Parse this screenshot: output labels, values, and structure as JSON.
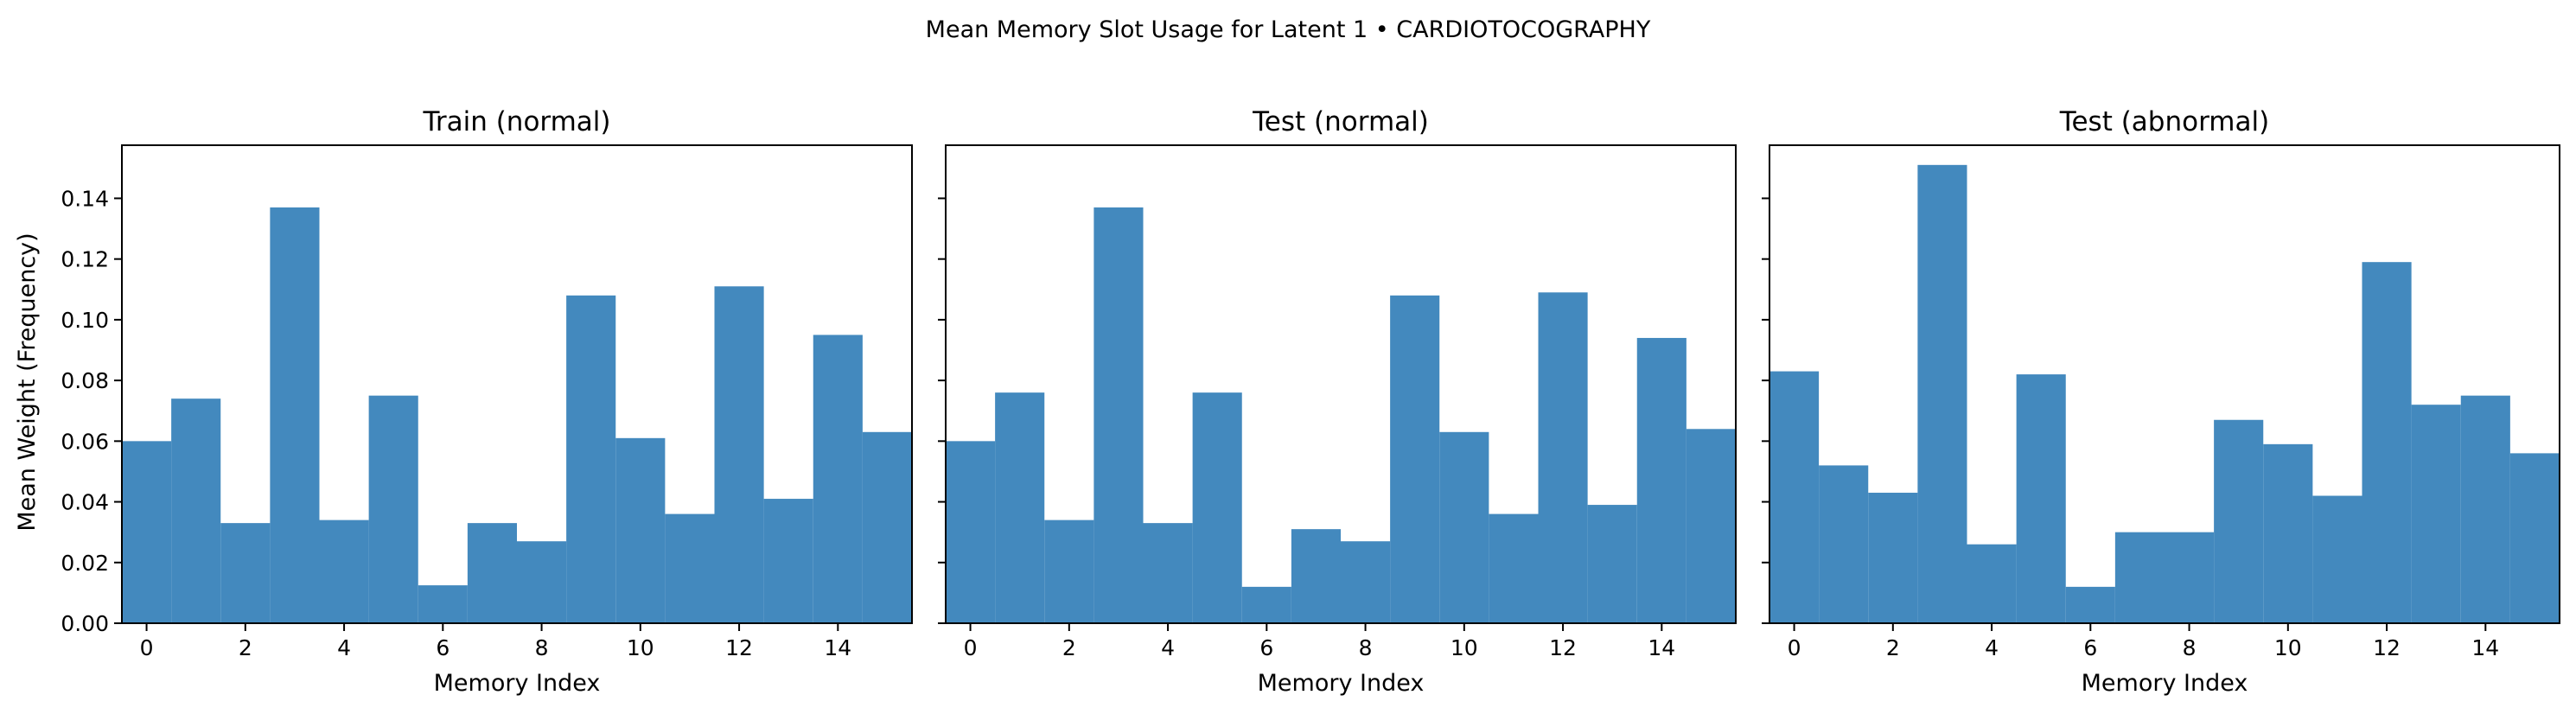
{
  "chart_data": {
    "type": "bar",
    "suptitle": "Mean Memory Slot Usage for Latent 1 • CARDIOTOCOGRAPHY",
    "bar_color": "#4389be",
    "xlabel": "Memory Index",
    "ylabel": "Mean Weight (Frequency)",
    "ylim": [
      0,
      0.1575
    ],
    "xlim": [
      -0.5,
      15.5
    ],
    "x_ticks": [
      "0",
      "2",
      "4",
      "6",
      "8",
      "10",
      "12",
      "14"
    ],
    "y_ticks": [
      "0.00",
      "0.02",
      "0.04",
      "0.06",
      "0.08",
      "0.10",
      "0.12",
      "0.14"
    ],
    "panels": [
      {
        "title": "Train (normal)",
        "categories": [
          0,
          1,
          2,
          3,
          4,
          5,
          6,
          7,
          8,
          9,
          10,
          11,
          12,
          13,
          14,
          15
        ],
        "values": [
          0.06,
          0.074,
          0.033,
          0.137,
          0.034,
          0.075,
          0.0125,
          0.033,
          0.027,
          0.108,
          0.061,
          0.036,
          0.111,
          0.041,
          0.095,
          0.063
        ]
      },
      {
        "title": "Test (normal)",
        "categories": [
          0,
          1,
          2,
          3,
          4,
          5,
          6,
          7,
          8,
          9,
          10,
          11,
          12,
          13,
          14,
          15
        ],
        "values": [
          0.06,
          0.076,
          0.034,
          0.137,
          0.033,
          0.076,
          0.012,
          0.031,
          0.027,
          0.108,
          0.063,
          0.036,
          0.109,
          0.039,
          0.094,
          0.064
        ]
      },
      {
        "title": "Test (abnormal)",
        "categories": [
          0,
          1,
          2,
          3,
          4,
          5,
          6,
          7,
          8,
          9,
          10,
          11,
          12,
          13,
          14,
          15
        ],
        "values": [
          0.083,
          0.052,
          0.043,
          0.151,
          0.026,
          0.082,
          0.012,
          0.03,
          0.03,
          0.067,
          0.059,
          0.042,
          0.119,
          0.072,
          0.075,
          0.056
        ]
      }
    ]
  }
}
